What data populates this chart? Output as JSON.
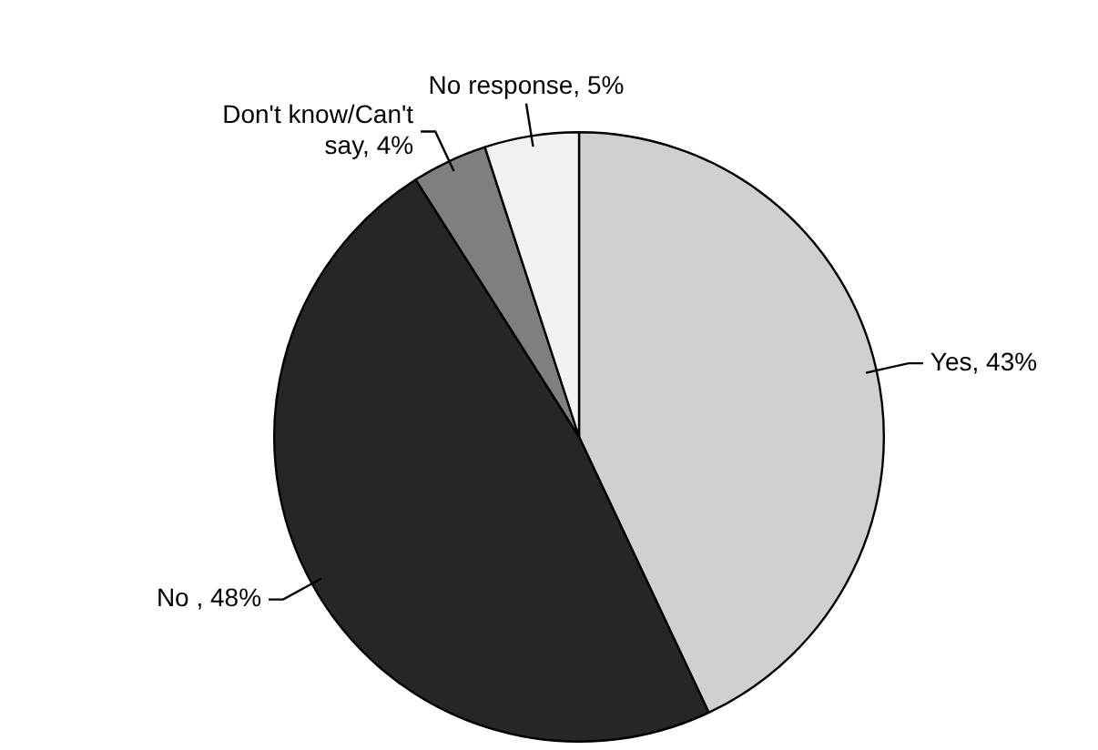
{
  "chart_data": {
    "type": "pie",
    "categories": [
      "Yes",
      "No ",
      "Don't know/Can't say",
      "No response"
    ],
    "values": [
      43,
      48,
      4,
      5
    ],
    "colors": [
      "#d0d0d0",
      "#262626",
      "#7f7f7f",
      "#f2f2f2"
    ],
    "value_labels": [
      "43%",
      "48%",
      "4%",
      "5%"
    ],
    "legend": false
  }
}
